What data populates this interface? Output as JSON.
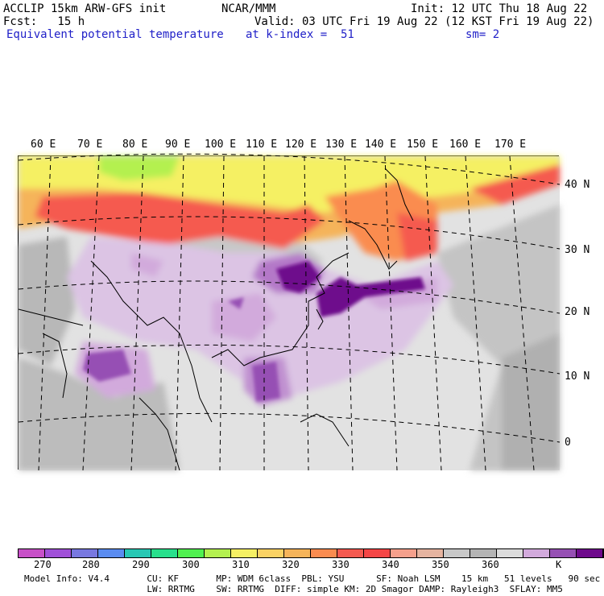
{
  "header": {
    "left1": "ACCLIP 15km ARW-GFS init",
    "left2": "Fcst:   15 h",
    "center": "NCAR/MMM",
    "init": "Init: 12 UTC Thu 18 Aug 22",
    "valid": "Valid: 03 UTC Fri 19 Aug 22 (12 KST Fri 19 Aug 22)",
    "field": "Equivalent potential temperature",
    "level": "at k-index =  51",
    "smooth": "sm= 2"
  },
  "longitudes": [
    "60 E",
    "70 E",
    "80 E",
    "90 E",
    "100 E",
    "110 E",
    "120 E",
    "130 E",
    "140 E",
    "150 E",
    "160 E",
    "170 E"
  ],
  "latitudes": [
    "40 N",
    "30 N",
    "20 N",
    "10 N",
    "0"
  ],
  "colorbar": {
    "colors": [
      "#c850c8",
      "#a050d8",
      "#7878e0",
      "#5a8cf0",
      "#28c8b4",
      "#28e08c",
      "#50f050",
      "#b4f050",
      "#f5f064",
      "#fad264",
      "#f5b45a",
      "#fa8c50",
      "#f55a50",
      "#f54646",
      "#f5a08c",
      "#e6b4a0",
      "#c8c8c8",
      "#b4b4b4",
      "#dcdcdc",
      "#d2aadc",
      "#9650b4",
      "#6e0a8c"
    ],
    "ticks": [
      "270",
      "280",
      "290",
      "300",
      "310",
      "320",
      "330",
      "340",
      "350",
      "360"
    ],
    "unit": "K"
  },
  "footer": {
    "line1": "Model Info: V4.4       CU: KF       MP: WDM 6class  PBL: YSU      SF: Noah LSM    15 km   51 levels   90 sec",
    "line2": "                       LW: RRTMG    SW: RRTMG  DIFF: simple KM: 2D Smagor DAMP: Rayleigh3  SFLAY: MM5"
  }
}
